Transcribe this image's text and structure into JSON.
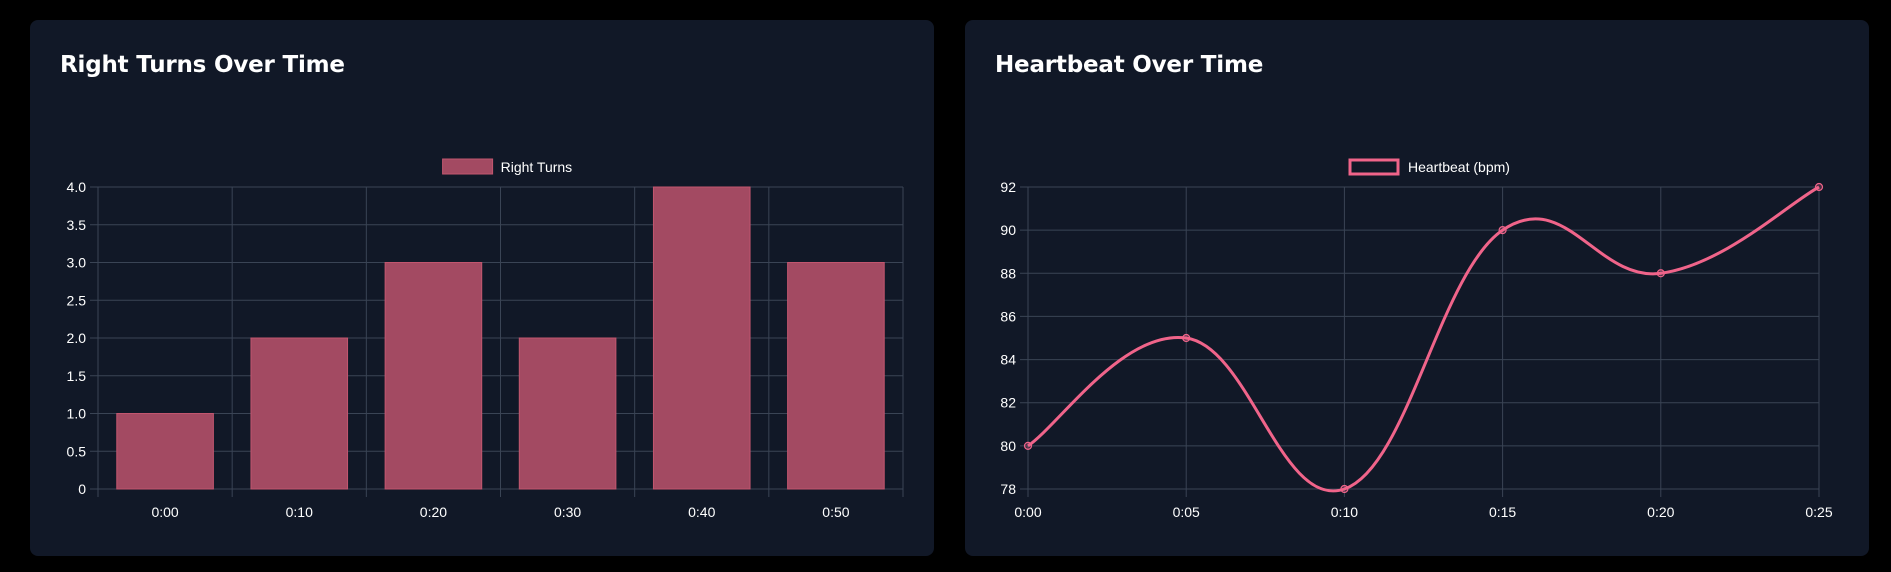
{
  "cards": [
    {
      "title": "Right Turns Over Time"
    },
    {
      "title": "Heartbeat Over Time"
    }
  ],
  "colors": {
    "background": "#000000",
    "card": "#111827",
    "grid": "#3a4455",
    "bar_fill": "#a34a62",
    "bar_border": "#c2566f",
    "line": "#f0648a",
    "text": "#ffffff"
  },
  "chart_data": [
    {
      "type": "bar",
      "title": "Right Turns Over Time",
      "categories": [
        "0:00",
        "0:10",
        "0:20",
        "0:30",
        "0:40",
        "0:50"
      ],
      "series": [
        {
          "name": "Right Turns",
          "values": [
            1,
            2,
            3,
            2,
            4,
            3
          ]
        }
      ],
      "ylim": [
        0,
        4
      ],
      "yticks": [
        "0",
        "0.5",
        "1.0",
        "1.5",
        "2.0",
        "2.5",
        "3.0",
        "3.5",
        "4.0"
      ],
      "grid": true,
      "legend": "top-center"
    },
    {
      "type": "line",
      "title": "Heartbeat Over Time",
      "x": [
        "0:00",
        "0:05",
        "0:10",
        "0:15",
        "0:20",
        "0:25"
      ],
      "series": [
        {
          "name": "Heartbeat (bpm)",
          "values": [
            80,
            85,
            78,
            90,
            88,
            92
          ]
        }
      ],
      "ylim": [
        78,
        92
      ],
      "yticks": [
        "78",
        "80",
        "82",
        "84",
        "86",
        "88",
        "90",
        "92"
      ],
      "grid": true,
      "smooth": true,
      "legend": "top-center"
    }
  ]
}
